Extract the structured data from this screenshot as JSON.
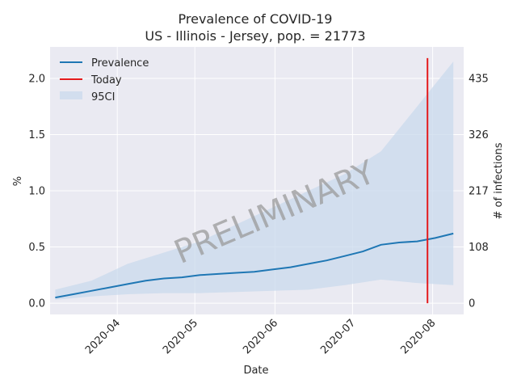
{
  "chart_data": {
    "type": "line",
    "title": "Prevalence of COVID-19",
    "subtitle": "US - Illinois - Jersey, pop. = 21773",
    "xlabel": "Date",
    "ylabel": "%",
    "y2label": "# of infections",
    "x_ticks": [
      "2020-04",
      "2020-05",
      "2020-06",
      "2020-07",
      "2020-08"
    ],
    "x_range": [
      "2020-03-06",
      "2020-08-13"
    ],
    "y_ticks": [
      "0.0",
      "0.5",
      "1.0",
      "1.5",
      "2.0"
    ],
    "ylim": [
      -0.1,
      2.28
    ],
    "y2_ticks": [
      "0",
      "108",
      "217",
      "326",
      "435"
    ],
    "grid": true,
    "legend_position": "top-left",
    "legend": [
      "Prevalence",
      "Today",
      "95CI"
    ],
    "watermark": "PRELIMINARY",
    "today": "2020-07-30",
    "colors": {
      "prevalence": "#1f77b4",
      "today": "#e41a1c",
      "ci": "#c9d9ec",
      "background": "#eaeaf2"
    },
    "series": [
      {
        "name": "Prevalence",
        "x": [
          "2020-03-08",
          "2020-03-15",
          "2020-03-22",
          "2020-03-29",
          "2020-04-05",
          "2020-04-12",
          "2020-04-19",
          "2020-04-26",
          "2020-05-03",
          "2020-05-10",
          "2020-05-17",
          "2020-05-24",
          "2020-05-31",
          "2020-06-07",
          "2020-06-14",
          "2020-06-21",
          "2020-06-28",
          "2020-07-05",
          "2020-07-12",
          "2020-07-19",
          "2020-07-26",
          "2020-08-02",
          "2020-08-09"
        ],
        "y": [
          0.05,
          0.08,
          0.11,
          0.14,
          0.17,
          0.2,
          0.22,
          0.23,
          0.25,
          0.26,
          0.27,
          0.28,
          0.3,
          0.32,
          0.35,
          0.38,
          0.42,
          0.46,
          0.52,
          0.54,
          0.55,
          0.58,
          0.62
        ]
      },
      {
        "name": "95CI",
        "x": [
          "2020-03-08",
          "2020-03-22",
          "2020-04-05",
          "2020-04-19",
          "2020-05-03",
          "2020-05-17",
          "2020-05-31",
          "2020-06-14",
          "2020-06-28",
          "2020-07-12",
          "2020-07-26",
          "2020-08-09"
        ],
        "lower": [
          0.03,
          0.06,
          0.08,
          0.09,
          0.09,
          0.1,
          0.11,
          0.12,
          0.16,
          0.21,
          0.18,
          0.16
        ],
        "upper": [
          0.12,
          0.2,
          0.35,
          0.45,
          0.55,
          0.7,
          0.85,
          1.0,
          1.15,
          1.35,
          1.75,
          2.15
        ]
      }
    ]
  }
}
